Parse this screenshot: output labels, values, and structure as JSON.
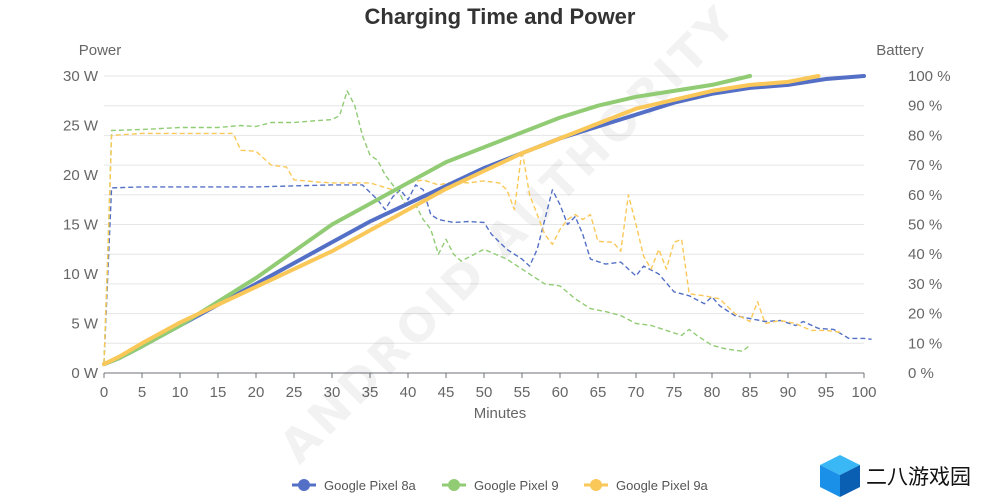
{
  "chart_data": {
    "type": "line",
    "title": "Charging Time and Power",
    "xlabel": "Minutes",
    "ylabel_left": "Power",
    "ylabel_right": "Battery",
    "xlim": [
      0,
      100
    ],
    "ylim_left": [
      0,
      30
    ],
    "ylim_right": [
      0,
      100
    ],
    "x_ticks": [
      "0",
      "5",
      "10",
      "15",
      "20",
      "25",
      "30",
      "35",
      "40",
      "45",
      "50",
      "55",
      "60",
      "65",
      "70",
      "75",
      "80",
      "85",
      "90",
      "95",
      "100"
    ],
    "y_left_ticks": [
      "0 W",
      "5 W",
      "10 W",
      "15 W",
      "20 W",
      "25 W",
      "30 W"
    ],
    "y_right_ticks": [
      "0 %",
      "10 %",
      "20 %",
      "30 %",
      "40 %",
      "50 %",
      "60 %",
      "70 %",
      "80 %",
      "90 %",
      "100 %"
    ],
    "grid": true,
    "legend_position": "bottom",
    "series": [
      {
        "name": "Google Pixel 8a",
        "color": "#5470c6",
        "battery": [
          [
            0,
            3
          ],
          [
            2,
            5
          ],
          [
            5,
            9
          ],
          [
            10,
            16
          ],
          [
            15,
            23
          ],
          [
            20,
            30
          ],
          [
            25,
            37
          ],
          [
            30,
            44
          ],
          [
            35,
            51
          ],
          [
            40,
            57
          ],
          [
            45,
            63
          ],
          [
            50,
            69
          ],
          [
            55,
            74
          ],
          [
            60,
            79
          ],
          [
            65,
            83
          ],
          [
            70,
            87
          ],
          [
            75,
            91
          ],
          [
            80,
            94
          ],
          [
            85,
            96
          ],
          [
            90,
            97
          ],
          [
            95,
            99
          ],
          [
            100,
            100
          ]
        ],
        "power": [
          [
            0,
            1
          ],
          [
            0.5,
            10
          ],
          [
            1,
            18.7
          ],
          [
            5,
            18.8
          ],
          [
            10,
            18.8
          ],
          [
            20,
            18.8
          ],
          [
            30,
            19
          ],
          [
            34,
            19
          ],
          [
            36,
            17.5
          ],
          [
            37,
            16.5
          ],
          [
            38,
            17.8
          ],
          [
            39,
            18.5
          ],
          [
            40,
            17.5
          ],
          [
            41,
            19
          ],
          [
            42,
            18.5
          ],
          [
            43,
            16
          ],
          [
            44,
            15.5
          ],
          [
            46,
            15.2
          ],
          [
            48,
            15.3
          ],
          [
            50,
            15.2
          ],
          [
            51,
            14
          ],
          [
            53,
            12.5
          ],
          [
            55,
            11.5
          ],
          [
            56,
            10.8
          ],
          [
            57,
            12.5
          ],
          [
            58,
            15.5
          ],
          [
            59,
            18.5
          ],
          [
            60,
            17
          ],
          [
            61,
            15
          ],
          [
            62,
            15.8
          ],
          [
            63,
            14
          ],
          [
            64,
            11.5
          ],
          [
            66,
            11
          ],
          [
            68,
            11.2
          ],
          [
            69,
            10.5
          ],
          [
            70,
            9.8
          ],
          [
            71,
            10.8
          ],
          [
            73,
            10
          ],
          [
            75,
            8.2
          ],
          [
            77,
            7.8
          ],
          [
            79,
            7
          ],
          [
            80,
            7.7
          ],
          [
            81,
            6.8
          ],
          [
            83,
            5.8
          ],
          [
            85,
            5.5
          ],
          [
            87,
            5.2
          ],
          [
            89,
            5.3
          ],
          [
            91,
            4.8
          ],
          [
            92,
            5.2
          ],
          [
            94,
            4.5
          ],
          [
            96,
            4.4
          ],
          [
            98,
            3.5
          ],
          [
            100,
            3.5
          ],
          [
            101,
            3.4
          ]
        ]
      },
      {
        "name": "Google Pixel 9",
        "color": "#91cc75",
        "battery": [
          [
            0,
            3
          ],
          [
            2,
            5
          ],
          [
            5,
            9
          ],
          [
            10,
            16
          ],
          [
            15,
            24
          ],
          [
            20,
            32
          ],
          [
            25,
            41
          ],
          [
            30,
            50
          ],
          [
            35,
            57
          ],
          [
            40,
            64
          ],
          [
            45,
            71
          ],
          [
            50,
            76
          ],
          [
            55,
            81
          ],
          [
            60,
            86
          ],
          [
            65,
            90
          ],
          [
            70,
            93
          ],
          [
            75,
            95
          ],
          [
            80,
            97
          ],
          [
            85,
            100
          ]
        ],
        "power": [
          [
            0,
            1
          ],
          [
            0.5,
            12
          ],
          [
            1,
            24.5
          ],
          [
            5,
            24.6
          ],
          [
            10,
            24.8
          ],
          [
            15,
            24.8
          ],
          [
            18,
            25
          ],
          [
            20,
            24.9
          ],
          [
            22,
            25.3
          ],
          [
            25,
            25.3
          ],
          [
            28,
            25.5
          ],
          [
            30,
            25.6
          ],
          [
            31,
            26
          ],
          [
            32,
            28.5
          ],
          [
            33,
            27
          ],
          [
            34,
            24
          ],
          [
            35,
            22
          ],
          [
            36,
            21.5
          ],
          [
            37,
            20
          ],
          [
            38,
            19
          ],
          [
            39,
            18
          ],
          [
            40,
            16.5
          ],
          [
            41,
            17
          ],
          [
            42,
            15.5
          ],
          [
            43,
            14.5
          ],
          [
            44,
            12
          ],
          [
            45,
            13.5
          ],
          [
            46,
            12
          ],
          [
            47,
            11.3
          ],
          [
            50,
            12.5
          ],
          [
            53,
            11.5
          ],
          [
            55,
            10.5
          ],
          [
            58,
            9
          ],
          [
            60,
            8.8
          ],
          [
            62,
            7.5
          ],
          [
            64,
            6.5
          ],
          [
            66,
            6.2
          ],
          [
            68,
            5.8
          ],
          [
            70,
            5
          ],
          [
            72,
            4.8
          ],
          [
            74,
            4.3
          ],
          [
            76,
            3.8
          ],
          [
            77,
            4.4
          ],
          [
            78,
            3.8
          ],
          [
            80,
            2.8
          ],
          [
            82,
            2.4
          ],
          [
            84,
            2.2
          ],
          [
            85,
            2.8
          ]
        ]
      },
      {
        "name": "Google Pixel 9a",
        "color": "#fac858",
        "battery": [
          [
            0,
            3
          ],
          [
            2,
            5.5
          ],
          [
            5,
            10
          ],
          [
            10,
            17
          ],
          [
            15,
            23
          ],
          [
            20,
            29
          ],
          [
            25,
            35
          ],
          [
            30,
            41
          ],
          [
            35,
            48
          ],
          [
            40,
            55
          ],
          [
            45,
            62
          ],
          [
            50,
            68
          ],
          [
            55,
            74
          ],
          [
            60,
            79
          ],
          [
            65,
            84
          ],
          [
            70,
            89
          ],
          [
            75,
            92
          ],
          [
            80,
            95
          ],
          [
            85,
            97
          ],
          [
            90,
            98
          ],
          [
            94,
            100
          ]
        ],
        "power": [
          [
            0,
            1
          ],
          [
            0.5,
            12
          ],
          [
            1,
            24
          ],
          [
            5,
            24.2
          ],
          [
            10,
            24.2
          ],
          [
            15,
            24.2
          ],
          [
            17,
            24.2
          ],
          [
            18,
            22.5
          ],
          [
            20,
            22.4
          ],
          [
            22,
            21
          ],
          [
            24,
            20.8
          ],
          [
            25,
            19.5
          ],
          [
            28,
            19.3
          ],
          [
            30,
            19.2
          ],
          [
            35,
            19.2
          ],
          [
            38,
            18.5
          ],
          [
            40,
            19.2
          ],
          [
            42,
            19.5
          ],
          [
            44,
            19
          ],
          [
            46,
            19.3
          ],
          [
            48,
            19.2
          ],
          [
            50,
            19.4
          ],
          [
            52,
            19.2
          ],
          [
            53,
            18.5
          ],
          [
            54,
            16.5
          ],
          [
            55,
            22.5
          ],
          [
            56,
            18
          ],
          [
            57,
            16
          ],
          [
            58,
            14
          ],
          [
            59,
            13
          ],
          [
            60,
            14.5
          ],
          [
            61,
            15.5
          ],
          [
            62,
            16
          ],
          [
            63,
            15.5
          ],
          [
            64,
            16
          ],
          [
            65,
            13.3
          ],
          [
            67,
            13.2
          ],
          [
            68,
            12.3
          ],
          [
            69,
            18
          ],
          [
            70,
            15
          ],
          [
            71,
            11.8
          ],
          [
            72,
            10.5
          ],
          [
            73,
            12.5
          ],
          [
            74,
            10.5
          ],
          [
            75,
            13.2
          ],
          [
            76,
            13.5
          ],
          [
            77,
            8
          ],
          [
            79,
            7.8
          ],
          [
            81,
            7.5
          ],
          [
            83,
            6
          ],
          [
            85,
            5.2
          ],
          [
            86,
            7.2
          ],
          [
            87,
            5
          ],
          [
            89,
            5.3
          ],
          [
            91,
            5
          ],
          [
            93,
            4.3
          ],
          [
            95,
            4.3
          ],
          [
            97,
            4.1
          ]
        ]
      }
    ]
  },
  "watermark": {
    "text": "ANDROID AUTHORITY"
  },
  "site_watermark": {
    "text": "二八游戏园",
    "logo_colors": [
      "#1a90e8",
      "#0b5fb3",
      "#3ab8f5"
    ]
  }
}
